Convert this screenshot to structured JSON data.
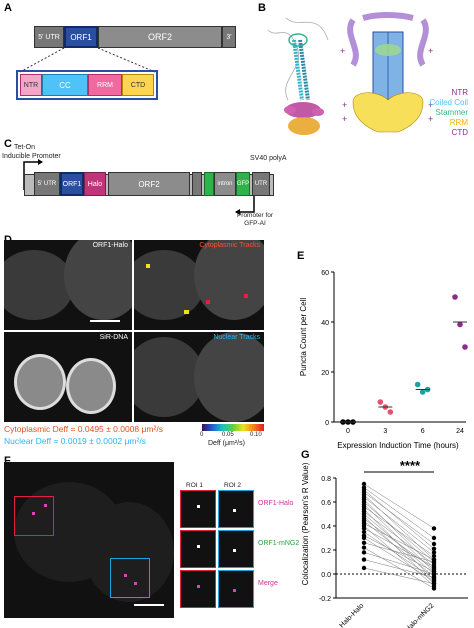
{
  "panels": {
    "A": "A",
    "B": "B",
    "C": "C",
    "D": "D",
    "E": "E",
    "F": "F",
    "G": "G"
  },
  "panel_a": {
    "utr5": "5' UTR",
    "orf1": "ORF1",
    "orf2": "ORF2",
    "utr3": "3'",
    "domains": [
      "NTR",
      "CC",
      "RRM",
      "CTD"
    ],
    "colors": {
      "ntr": "#f4a6c8",
      "cc": "#4fc3f7",
      "rrm": "#f48fb1",
      "ctd": "#ffd54f",
      "orf1": "#2b4fa0",
      "orf2": "#8c8c8c"
    }
  },
  "panel_b": {
    "legend": [
      "NTR",
      "Coiled Coil",
      "Stammer",
      "RRM",
      "CTD"
    ],
    "legend_colors": [
      "#8e2a8e",
      "#4fc3f7",
      "#33b58c",
      "#f0b400",
      "#8e2a8e"
    ],
    "plus": "+"
  },
  "panel_c": {
    "tet_on": "Tet-On",
    "inducible": "Inducible Promoter",
    "utr5": "5' UTR",
    "orf1": "ORF1",
    "halo": "Halo",
    "orf2": "ORF2",
    "intron": "intron",
    "gfp_rev": "GFP",
    "sv40": "SV40 polyA",
    "utr3": "UTR",
    "promoter_note": "Promoter for GFP-AI"
  },
  "panel_d": {
    "orf1_halo": "ORF1-Halo",
    "cyto_tracks": "Cytoplasmic Tracks",
    "sir_dna": "SiR-DNA",
    "nuc_tracks": "Nuclear Tracks",
    "cyto_d": "Cytoplasmic Deff = 0.0495 ± 0.0008 μm²/s",
    "nuc_d": "Nuclear Deff = 0.0019 ± 0.0002 μm²/s",
    "colorbar_ticks": [
      "0.05",
      "0.10"
    ],
    "colorbar_low": "0",
    "colorbar_label": "Deff (μm²/s)"
  },
  "chart_data": [
    {
      "type": "scatter",
      "panel": "E",
      "ylabel": "Puncta Count per Cell",
      "xlabel": "Expression Induction Time (hours)",
      "categories": [
        "0",
        "3",
        "6",
        "24"
      ],
      "ylim": [
        0,
        60
      ],
      "yticks": [
        0,
        20,
        40,
        60
      ],
      "series": [
        {
          "category": "0",
          "values": [
            0,
            0,
            0
          ],
          "color": "#000000"
        },
        {
          "category": "3",
          "values": [
            8,
            6,
            4
          ],
          "color": "#e8506e"
        },
        {
          "category": "6",
          "values": [
            15,
            12,
            13
          ],
          "color": "#1aa3a3"
        },
        {
          "category": "24",
          "values": [
            50,
            39,
            30
          ],
          "color": "#8e2a8e"
        }
      ],
      "means": [
        0,
        6,
        13,
        40
      ]
    },
    {
      "type": "scatter",
      "panel": "G",
      "ylabel": "Colocalization (Pearson's R Value)",
      "categories": [
        "Halo-Halo",
        "Halo-mNG2"
      ],
      "ylim": [
        -0.2,
        0.8
      ],
      "yticks": [
        -0.2,
        0.0,
        0.2,
        0.4,
        0.6,
        0.8
      ],
      "significance": "****",
      "pairs": [
        [
          0.75,
          0.38
        ],
        [
          0.72,
          0.3
        ],
        [
          0.7,
          0.21
        ],
        [
          0.68,
          0.25
        ],
        [
          0.66,
          0.12
        ],
        [
          0.64,
          0.18
        ],
        [
          0.62,
          0.05
        ],
        [
          0.6,
          0.1
        ],
        [
          0.58,
          0.02
        ],
        [
          0.56,
          0.15
        ],
        [
          0.54,
          -0.05
        ],
        [
          0.52,
          0.08
        ],
        [
          0.5,
          0.0
        ],
        [
          0.48,
          -0.08
        ],
        [
          0.46,
          0.04
        ],
        [
          0.44,
          -0.02
        ],
        [
          0.42,
          0.12
        ],
        [
          0.4,
          -0.1
        ],
        [
          0.38,
          0.06
        ],
        [
          0.35,
          -0.04
        ],
        [
          0.32,
          0.02
        ],
        [
          0.3,
          -0.06
        ],
        [
          0.26,
          0.1
        ],
        [
          0.22,
          -0.12
        ],
        [
          0.18,
          0.0
        ],
        [
          0.12,
          -0.03
        ],
        [
          0.05,
          -0.08
        ]
      ]
    }
  ],
  "panel_f": {
    "roi1": "ROI 1",
    "roi2": "ROI 2",
    "ch1": "ORF1-Halo",
    "ch2": "ORF1-mNG2",
    "ch3": "Merge"
  }
}
